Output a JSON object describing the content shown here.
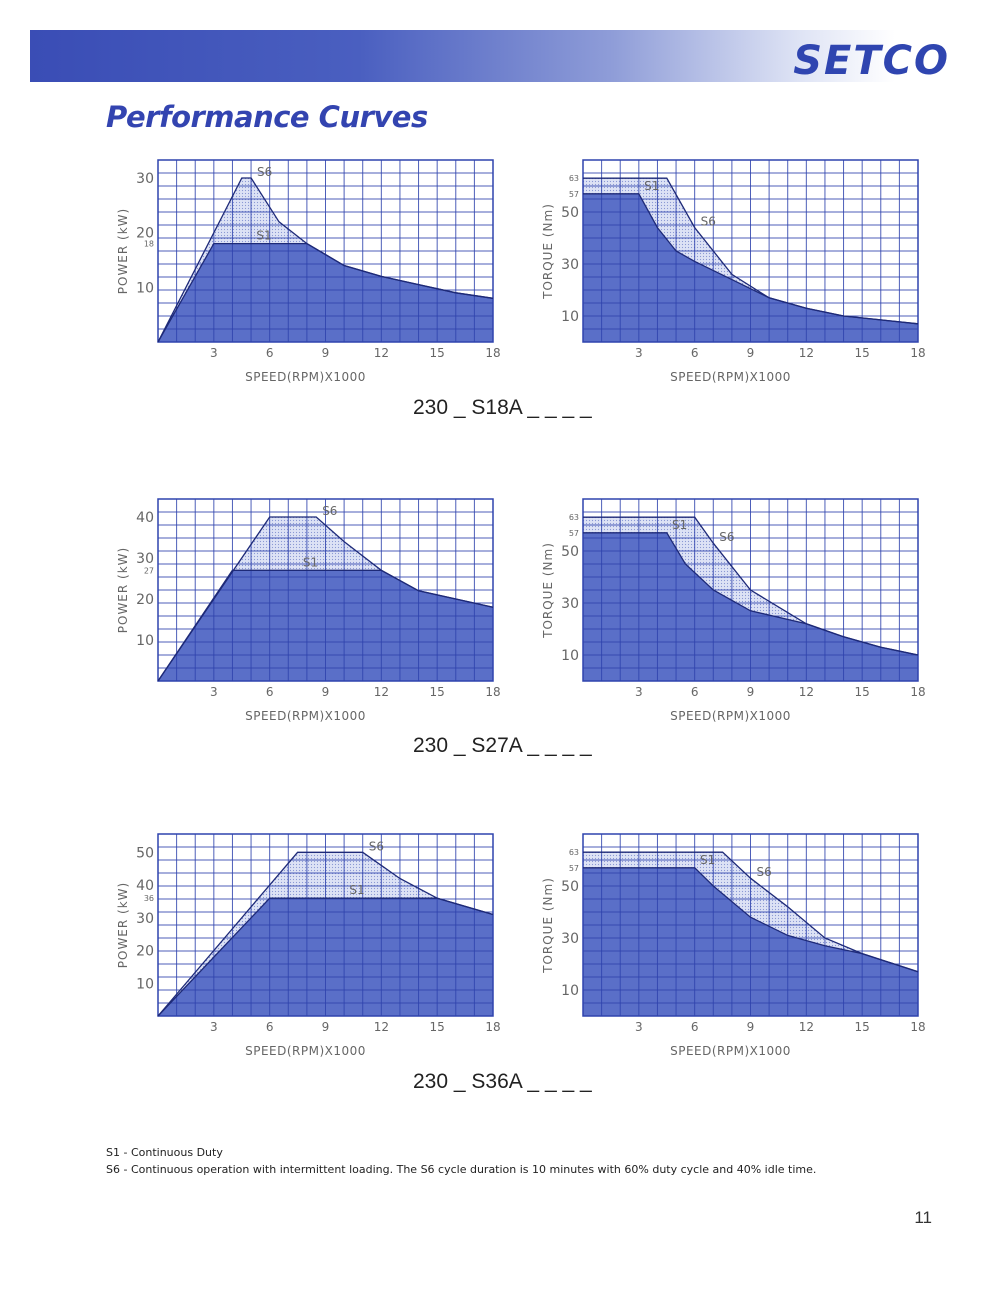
{
  "header": {
    "brand": "SETCO",
    "title": "Performance Curves"
  },
  "models": [
    "230 _ S18A _ _ _ _",
    "230 _ S27A _ _ _ _",
    "230 _ S36A _ _ _ _"
  ],
  "legend_notes": {
    "s1": "S1 - Continuous Duty",
    "s6": "S6 - Continuous operation with intermittent loading. The S6 cycle duration is 10 minutes with 60% duty cycle and 40% idle time."
  },
  "page_number": "11",
  "colors": {
    "fill": "#5a6fc8",
    "band": "#c9d0ee",
    "grid": "#2f43ad",
    "curve": "#1e2a78"
  },
  "chart_data": [
    {
      "type": "area",
      "xlabel": "SPEED(RPM)X1000",
      "ylabel": "POWER (kW)",
      "xlim": [
        0,
        18
      ],
      "ylim": [
        0,
        33.3
      ],
      "xticks": [
        "3",
        "6",
        "9",
        "12",
        "15",
        "18"
      ],
      "yticks": [
        "10",
        "20",
        "30"
      ],
      "ytick_values": [
        10,
        20,
        30
      ],
      "yminor": [
        "18"
      ],
      "yminor_values": [
        18
      ],
      "series": [
        {
          "name": "S6",
          "x": [
            0,
            4.5,
            5.0,
            6.5,
            8,
            10,
            12,
            14,
            16,
            18
          ],
          "y": [
            0,
            30,
            30,
            22,
            18,
            14,
            12,
            10.5,
            9,
            8
          ]
        },
        {
          "name": "S1",
          "x": [
            0,
            3,
            8,
            10,
            12,
            14,
            16,
            18
          ],
          "y": [
            0,
            18,
            18,
            14,
            12,
            10.5,
            9,
            8
          ]
        }
      ]
    },
    {
      "type": "area",
      "xlabel": "SPEED(RPM)X1000",
      "ylabel": "TORQUE (Nm)",
      "xlim": [
        0,
        18
      ],
      "ylim": [
        0,
        70
      ],
      "xticks": [
        "3",
        "6",
        "9",
        "12",
        "15",
        "18"
      ],
      "yticks": [
        "10",
        "30",
        "50"
      ],
      "ytick_values": [
        10,
        30,
        50
      ],
      "yminor": [
        "57",
        "63"
      ],
      "yminor_values": [
        57,
        63
      ],
      "series": [
        {
          "name": "S6",
          "x": [
            0,
            4.5,
            6,
            8,
            10,
            12,
            14,
            16,
            18
          ],
          "y": [
            63,
            63,
            44,
            26,
            17,
            13,
            10,
            8.5,
            7
          ]
        },
        {
          "name": "S1",
          "x": [
            0,
            3,
            4,
            5,
            6,
            8,
            10,
            12,
            14,
            16,
            18
          ],
          "y": [
            57,
            57,
            44,
            35,
            31,
            24,
            17,
            13,
            10,
            8.5,
            7
          ]
        }
      ]
    },
    {
      "type": "area",
      "xlabel": "SPEED(RPM)X1000",
      "ylabel": "POWER (kW)",
      "xlim": [
        0,
        18
      ],
      "ylim": [
        0,
        44.4
      ],
      "xticks": [
        "3",
        "6",
        "9",
        "12",
        "15",
        "18"
      ],
      "yticks": [
        "10",
        "20",
        "30",
        "40"
      ],
      "ytick_values": [
        10,
        20,
        30,
        40
      ],
      "yminor": [
        "27"
      ],
      "yminor_values": [
        27
      ],
      "series": [
        {
          "name": "S6",
          "x": [
            0,
            6,
            8.5,
            10,
            12,
            14,
            16,
            18
          ],
          "y": [
            0,
            40,
            40,
            34,
            27,
            22,
            20,
            18
          ]
        },
        {
          "name": "S1",
          "x": [
            0,
            4,
            12,
            14,
            16,
            18
          ],
          "y": [
            0,
            27,
            27,
            22,
            20,
            18
          ]
        }
      ]
    },
    {
      "type": "area",
      "xlabel": "SPEED(RPM)X1000",
      "ylabel": "TORQUE (Nm)",
      "xlim": [
        0,
        18
      ],
      "ylim": [
        0,
        70
      ],
      "xticks": [
        "3",
        "6",
        "9",
        "12",
        "15",
        "18"
      ],
      "yticks": [
        "10",
        "30",
        "50"
      ],
      "ytick_values": [
        10,
        30,
        50
      ],
      "yminor": [
        "57",
        "63"
      ],
      "yminor_values": [
        57,
        63
      ],
      "series": [
        {
          "name": "S6",
          "x": [
            0,
            6,
            7,
            9,
            12,
            14,
            16,
            18
          ],
          "y": [
            63,
            63,
            53,
            35,
            22,
            17,
            13,
            10
          ]
        },
        {
          "name": "S1",
          "x": [
            0,
            4.5,
            5.5,
            7,
            9,
            12,
            14,
            16,
            18
          ],
          "y": [
            57,
            57,
            45,
            35,
            27,
            22,
            17,
            13,
            10
          ]
        }
      ]
    },
    {
      "type": "area",
      "xlabel": "SPEED(RPM)X1000",
      "ylabel": "POWER (kW)",
      "xlim": [
        0,
        18
      ],
      "ylim": [
        0,
        55.6
      ],
      "xticks": [
        "3",
        "6",
        "9",
        "12",
        "15",
        "18"
      ],
      "yticks": [
        "10",
        "20",
        "30",
        "40",
        "50"
      ],
      "ytick_values": [
        10,
        20,
        30,
        40,
        50
      ],
      "yminor": [
        "36"
      ],
      "yminor_values": [
        36
      ],
      "series": [
        {
          "name": "S6",
          "x": [
            0,
            7.5,
            11,
            13,
            15,
            18
          ],
          "y": [
            0,
            50,
            50,
            42,
            36,
            31
          ]
        },
        {
          "name": "S1",
          "x": [
            0,
            6,
            15,
            18
          ],
          "y": [
            0,
            36,
            36,
            31
          ]
        }
      ]
    },
    {
      "type": "area",
      "xlabel": "SPEED(RPM)X1000",
      "ylabel": "TORQUE (Nm)",
      "xlim": [
        0,
        18
      ],
      "ylim": [
        0,
        70
      ],
      "xticks": [
        "3",
        "6",
        "9",
        "12",
        "15",
        "18"
      ],
      "yticks": [
        "10",
        "30",
        "50"
      ],
      "ytick_values": [
        10,
        30,
        50
      ],
      "yminor": [
        "57",
        "63"
      ],
      "yminor_values": [
        57,
        63
      ],
      "series": [
        {
          "name": "S6",
          "x": [
            0,
            7.5,
            9,
            11,
            13,
            15,
            18
          ],
          "y": [
            63,
            63,
            53,
            42,
            30,
            24,
            17
          ]
        },
        {
          "name": "S1",
          "x": [
            0,
            6,
            7,
            9,
            11,
            13,
            15,
            18
          ],
          "y": [
            57,
            57,
            50,
            38,
            31,
            27,
            24,
            17
          ]
        }
      ]
    }
  ]
}
